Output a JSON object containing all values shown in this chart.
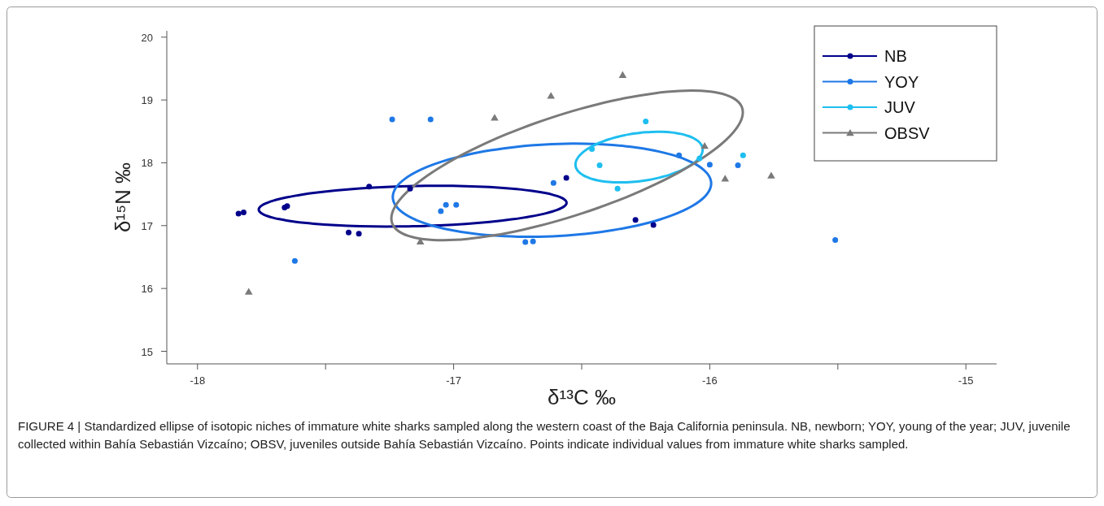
{
  "chart_data": {
    "type": "scatter",
    "xlabel": "δ¹³C ‰",
    "ylabel": "δ¹⁵N ‰",
    "xlim": [
      -18.12,
      -14.88
    ],
    "ylim": [
      14.8,
      20.1
    ],
    "xticks": [
      -18,
      {
        "value": -17.5,
        "label": null
      },
      -17,
      {
        "value": -16.5,
        "label": null
      },
      -16,
      {
        "value": -15.5,
        "label": null
      },
      -15
    ],
    "yticks": [
      15,
      16,
      17,
      18,
      19,
      20
    ],
    "grid": false,
    "legend": "top right",
    "annotations": [
      "FIGURE 4 | Standardized ellipse of isotopic niches of immature white sharks sampled along the western coast of the Baja California peninsula. NB, newborn; YOY, young of the year; JUV, juvenile collected within Bahía Sebastián Vizcaíno; OBSV, juveniles outside Bahía Sebastián Vizcaíno. Points indicate individual values from immature white sharks sampled."
    ],
    "series": [
      {
        "name": "NB",
        "color": "#00008b",
        "marker": "circle",
        "x": [
          -17.84,
          -17.82,
          -17.66,
          -17.65,
          -17.41,
          -17.37,
          -17.33,
          -17.17,
          -16.56,
          -16.29,
          -16.22
        ],
        "values": [
          17.19,
          17.21,
          17.29,
          17.31,
          16.89,
          16.87,
          17.62,
          17.59,
          17.76,
          17.09,
          17.01
        ]
      },
      {
        "name": "YOY",
        "color": "#1e78e6",
        "marker": "circle",
        "x": [
          -17.24,
          -17.09,
          -17.62,
          -17.05,
          -17.03,
          -16.99,
          -16.61,
          -16.72,
          -16.69,
          -16.12,
          -16.0,
          -15.89,
          -15.51
        ],
        "values": [
          18.69,
          18.69,
          16.44,
          17.23,
          17.33,
          17.33,
          17.68,
          16.74,
          16.75,
          18.12,
          17.97,
          17.96,
          16.77
        ]
      },
      {
        "name": "JUV",
        "color": "#1ebef0",
        "marker": "circle",
        "x": [
          -16.25,
          -16.46,
          -16.43,
          -16.36,
          -16.04,
          -15.87
        ],
        "values": [
          18.66,
          18.22,
          17.96,
          17.59,
          18.07,
          18.12
        ]
      },
      {
        "name": "OBSV",
        "color": "#7a7a7a",
        "marker": "triangle",
        "x": [
          -17.8,
          -17.13,
          -16.84,
          -16.62,
          -16.34,
          -16.02,
          -15.94,
          -15.76
        ],
        "values": [
          15.95,
          16.75,
          18.72,
          19.07,
          19.4,
          18.27,
          17.75,
          17.8
        ]
      }
    ]
  }
}
